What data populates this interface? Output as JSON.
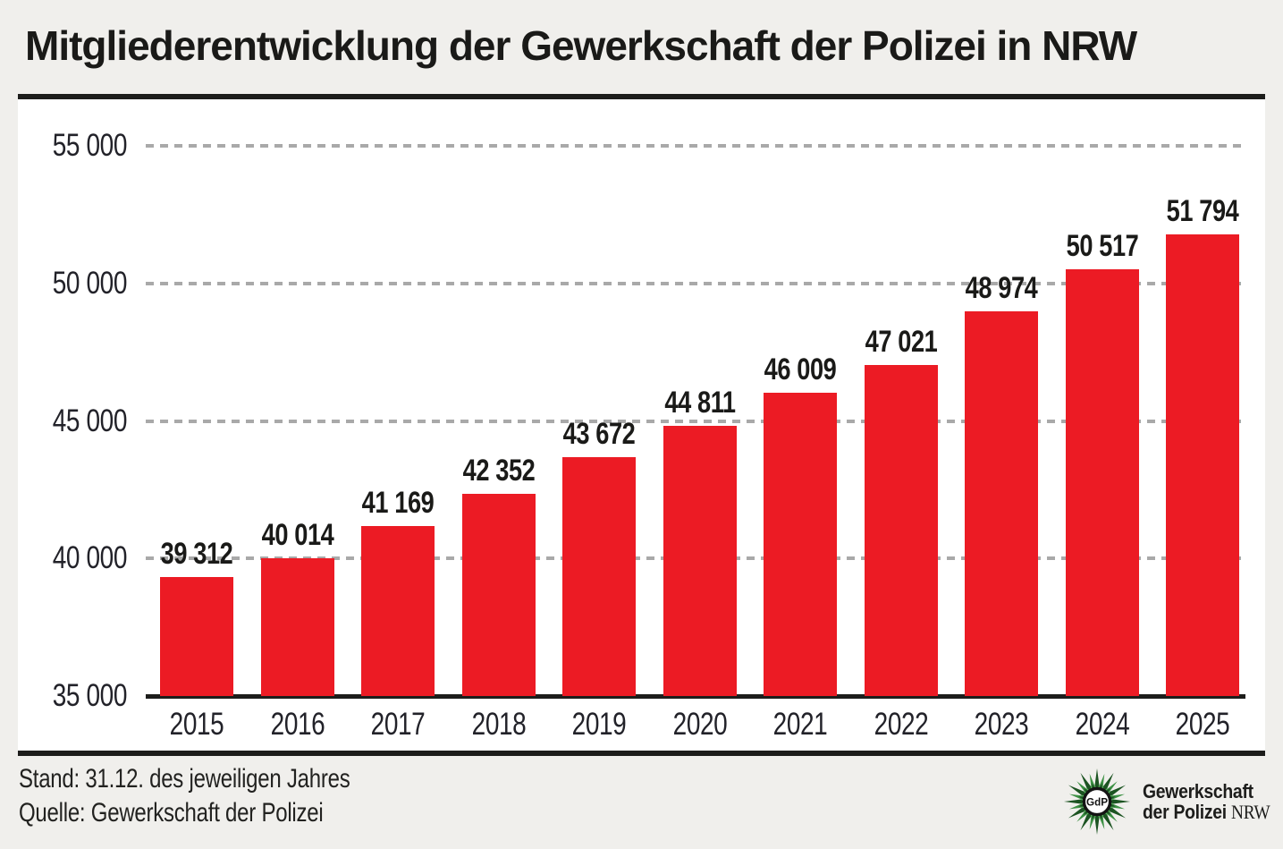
{
  "title": "Mitgliederentwicklung der Gewerkschaft der Polizei in NRW",
  "chart_data": {
    "type": "bar",
    "title": "Mitgliederentwicklung der Gewerkschaft der Polizei in NRW",
    "categories": [
      "2015",
      "2016",
      "2017",
      "2018",
      "2019",
      "2020",
      "2021",
      "2022",
      "2023",
      "2024",
      "2025"
    ],
    "values": [
      39312,
      40014,
      41169,
      42352,
      43672,
      44811,
      46009,
      47021,
      48974,
      50517,
      51794
    ],
    "value_labels": [
      "39 312",
      "40 014",
      "41 169",
      "42 352",
      "43 672",
      "44 811",
      "46 009",
      "47 021",
      "48 974",
      "50 517",
      "51 794"
    ],
    "xlabel": "",
    "ylabel": "",
    "ylim": [
      35000,
      55000
    ],
    "yticks": [
      35000,
      40000,
      45000,
      50000,
      55000
    ],
    "ytick_labels": [
      "35 000",
      "40 000",
      "45 000",
      "50 000",
      "55 000"
    ],
    "grid": "horizontal-dashed",
    "legend": "none",
    "bar_color": "#ec1b24",
    "gridline_color": "#a9a9a9",
    "axis_color": "#1d1d1b"
  },
  "footer": {
    "stand": "Stand: 31.12. des jeweiligen Jahres",
    "quelle": "Quelle: Gewerkschaft der Polizei",
    "logo": {
      "line1": "Gewerkschaft",
      "line2_bold": "der Polizei",
      "line2_light": "NRW",
      "star_center": "GdP",
      "star_green_dark": "#1c5422",
      "star_green_mid": "#3d9144",
      "star_green_light": "#5cb85f",
      "ring_color": "#141414"
    }
  },
  "colors": {
    "page_bg": "#f0efec",
    "chart_bg": "#ffffff",
    "text": "#1d1d1b"
  }
}
